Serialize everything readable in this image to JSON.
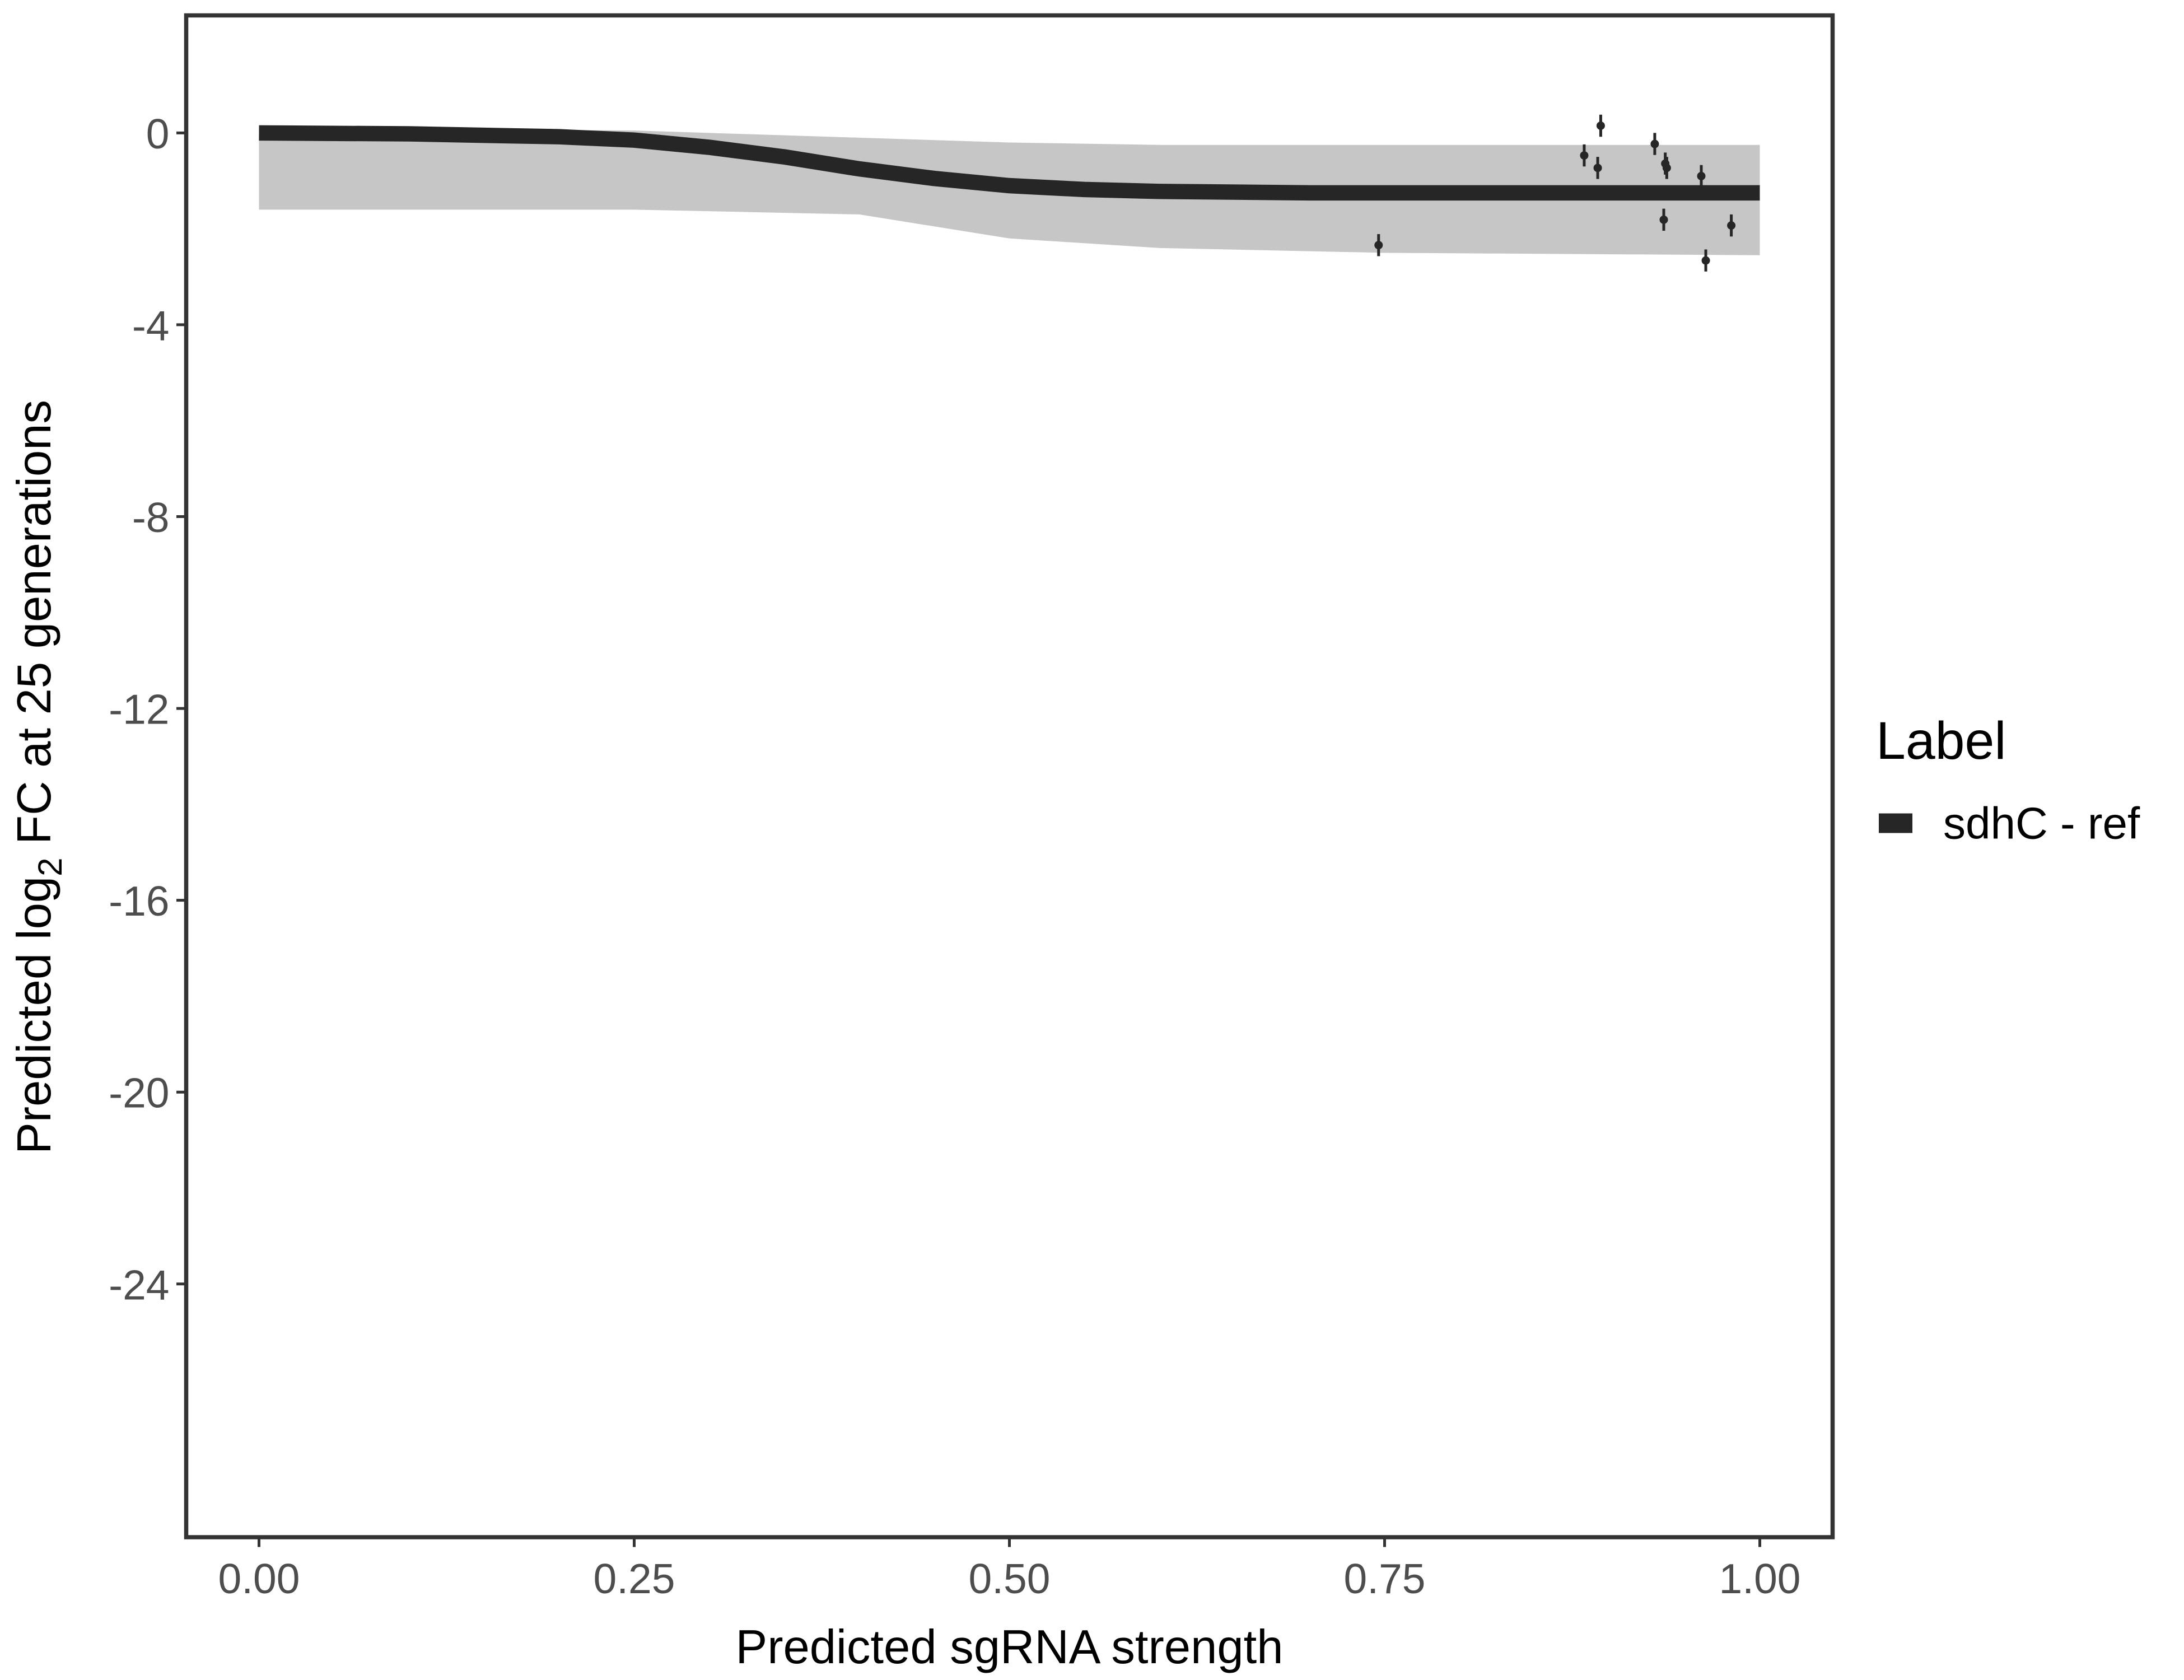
{
  "chart_data": {
    "type": "line",
    "xlabel": "Predicted sgRNA strength",
    "ylabel": [
      "Predicted  log",
      "2",
      " FC at 25 generations"
    ],
    "xlim": [
      -0.0485,
      1.0485
    ],
    "ylim": [
      -29.28,
      2.45
    ],
    "xticks": [
      {
        "value": 0,
        "label": "0.00"
      },
      {
        "value": 0.25,
        "label": "0.25"
      },
      {
        "value": 0.5,
        "label": "0.50"
      },
      {
        "value": 0.75,
        "label": "0.75"
      },
      {
        "value": 1,
        "label": "1.00"
      }
    ],
    "yticks": [
      0,
      -4,
      -8,
      -12,
      -16,
      -20,
      -24
    ],
    "legend_title": "Label",
    "legend_position": "right",
    "band": {
      "color": "#b3b3b3",
      "x": [
        0,
        0.25,
        0.4,
        0.5,
        0.6,
        0.75,
        1
      ],
      "upper": [
        0.1,
        0.05,
        -0.1,
        -0.2,
        -0.25,
        -0.25,
        -0.25
      ],
      "lower": [
        -1.6,
        -1.6,
        -1.7,
        -2.2,
        -2.4,
        -2.5,
        -2.55
      ]
    },
    "series": [
      {
        "name": "sdhC - ref",
        "color": "#262626",
        "x": [
          0,
          0.1,
          0.2,
          0.25,
          0.3,
          0.35,
          0.4,
          0.45,
          0.5,
          0.55,
          0.6,
          0.7,
          0.8,
          0.9,
          1
        ],
        "values": [
          0,
          -0.02,
          -0.08,
          -0.15,
          -0.3,
          -0.5,
          -0.75,
          -0.95,
          -1.1,
          -1.18,
          -1.22,
          -1.25,
          -1.25,
          -1.25,
          -1.25
        ]
      }
    ],
    "points": {
      "color": "#262626",
      "x": [
        0.746,
        0.883,
        0.892,
        0.894,
        0.93,
        0.937,
        0.938,
        0.936,
        0.961,
        0.964,
        0.981
      ],
      "values": [
        -2.34,
        -0.47,
        -0.73,
        0.15,
        -0.23,
        -0.64,
        -0.73,
        -1.81,
        -0.9,
        -2.66,
        -1.93
      ],
      "error": [
        0.23,
        0.23,
        0.23,
        0.23,
        0.23,
        0.23,
        0.23,
        0.23,
        0.23,
        0.23,
        0.23
      ]
    }
  }
}
